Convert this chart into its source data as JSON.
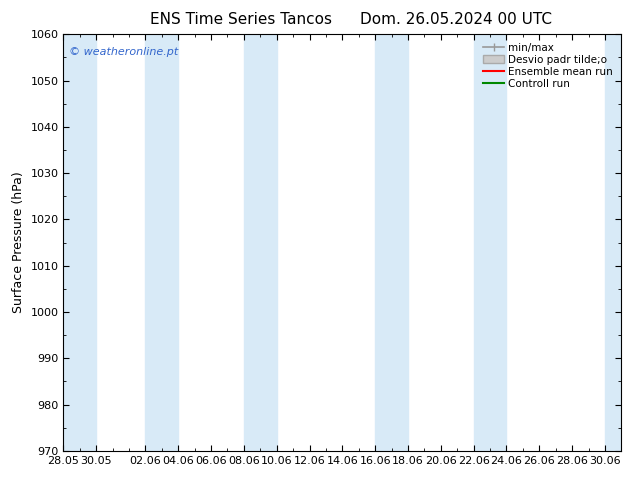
{
  "title_left": "ENS Time Series Tancos",
  "title_right": "Dom. 26.05.2024 00 UTC",
  "ylabel": "Surface Pressure (hPa)",
  "ylim": [
    970,
    1060
  ],
  "yticks": [
    970,
    980,
    990,
    1000,
    1010,
    1020,
    1030,
    1040,
    1050,
    1060
  ],
  "xtick_labels": [
    "28.05",
    "30.05",
    "02.06",
    "04.06",
    "06.06",
    "08.06",
    "10.06",
    "12.06",
    "14.06",
    "16.06",
    "18.06",
    "20.06",
    "22.06",
    "24.06",
    "26.06",
    "28.06",
    "30.06"
  ],
  "xtick_positions": [
    0,
    2,
    5,
    7,
    9,
    11,
    13,
    15,
    17,
    19,
    21,
    23,
    25,
    27,
    29,
    31,
    33
  ],
  "band_color": "#d8eaf7",
  "background_color": "#ffffff",
  "watermark": "© weatheronline.pt",
  "watermark_color": "#3366cc",
  "legend_items": [
    "min/max",
    "Desvio padr tilde;o",
    "Ensemble mean run",
    "Controll run"
  ],
  "line_color_red": "#ff0000",
  "line_color_green": "#008800",
  "line_color_gray": "#999999",
  "fill_color_gray": "#cccccc",
  "total_days": 34,
  "title_fontsize": 11,
  "ylabel_fontsize": 9,
  "tick_fontsize": 8,
  "watermark_fontsize": 8,
  "legend_fontsize": 7.5
}
